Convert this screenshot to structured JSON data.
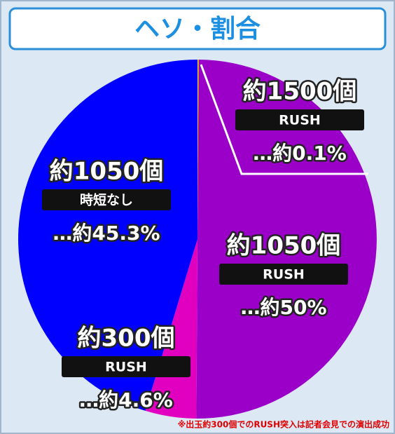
{
  "chart_data": {
    "type": "pie",
    "title": "ヘソ・割合",
    "categories": [
      "約1500個",
      "約1050個",
      "約300個",
      "約1050個"
    ],
    "subcategories": [
      "RUSH",
      "RUSH",
      "RUSH",
      "時短なし"
    ],
    "values": [
      0.1,
      50,
      4.6,
      45.3
    ],
    "value_labels": [
      "…約0.1%",
      "…約50%",
      "…約4.6%",
      "…約45.3%"
    ],
    "colors": [
      "#f0e000",
      "#9a00c8",
      "#e200c0",
      "#0000ff"
    ],
    "note": "※出玉約300個でのRUSH突入は記者会見での演出成功"
  }
}
